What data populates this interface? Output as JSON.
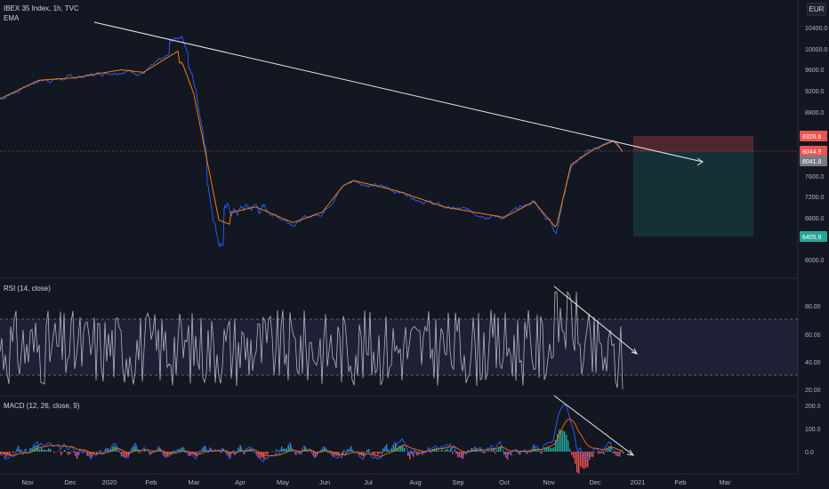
{
  "main": {
    "symbol_line": "IBEX 35 Index, 1h, TVC",
    "indicator": "EMA",
    "currency": "EUR",
    "y_ticks": [
      "10400.0",
      "10000.0",
      "9600.0",
      "9200.0",
      "8800.0",
      "8400.0",
      "8000.0",
      "7600.0",
      "7200.0",
      "6800.0",
      "6400.0",
      "6000.0"
    ],
    "price_badges": [
      {
        "text": "8326.6",
        "color": "#ef5350"
      },
      {
        "text": "8044.9",
        "color": "#ef5350"
      },
      {
        "text": "8041.8",
        "color": "#787b86"
      },
      {
        "text": "6405.9",
        "color": "#26a69a"
      }
    ]
  },
  "rsi": {
    "title": "RSI (14, close)",
    "y_ticks": [
      "80.00",
      "60.00",
      "40.00",
      "20.00"
    ]
  },
  "macd": {
    "title": "MACD (12, 26, close, 9)",
    "y_ticks": [
      "200.0",
      "100.0",
      "0.0"
    ]
  },
  "time_axis": [
    "Nov",
    "Dec",
    "2020",
    "Feb",
    "Mar",
    "Apr",
    "May",
    "Jun",
    "Jul",
    "Aug",
    "Sep",
    "Oct",
    "Nov",
    "Dec",
    "2021",
    "Feb",
    "Mar"
  ],
  "colors": {
    "background": "#131722",
    "price": "#2962ff",
    "ema": "#f57c00",
    "rsi": "#b2b5be",
    "rsi_band": "#7e57c2",
    "macd": "#2962ff",
    "signal": "#ff6d00",
    "hist_up": "#26a69a",
    "hist_down": "#ef5350",
    "trendline": "#ffffff"
  },
  "chart_data": [
    {
      "type": "line",
      "title": "IBEX 35 Index, 1h, TVC",
      "series": [
        {
          "name": "EMA",
          "x": [
            "2019-10-20",
            "2019-11-15",
            "2019-12-10",
            "2020-01-10",
            "2020-01-25",
            "2020-02-20",
            "2020-02-28",
            "2020-03-16",
            "2020-03-25",
            "2020-04-10",
            "2020-05-05",
            "2020-05-25",
            "2020-06-08",
            "2020-06-15",
            "2020-07-15",
            "2020-08-15",
            "2020-09-25",
            "2020-10-15",
            "2020-10-30",
            "2020-11-09",
            "2020-11-25",
            "2020-12-08",
            "2020-12-14"
          ],
          "y": [
            9050,
            9400,
            9450,
            9600,
            9550,
            10000,
            9400,
            7000,
            6900,
            7000,
            6700,
            6900,
            7400,
            7500,
            7300,
            7000,
            6800,
            7100,
            6600,
            7800,
            8100,
            8250,
            8050
          ]
        }
      ],
      "ylim": [
        5800,
        10700
      ],
      "annotations": {
        "trendline_from": [
          8200,
          10300
        ],
        "trendline_to": [
          7800,
          7850
        ],
        "position_entry": 8044.9,
        "stop": 8326.6,
        "target": 6405.9
      }
    },
    {
      "type": "line",
      "title": "RSI (14, close)",
      "ylim": [
        18,
        92
      ],
      "band": [
        30,
        70
      ]
    },
    {
      "type": "line",
      "title": "MACD (12, 26, close, 9)",
      "ylim": [
        -60,
        230
      ]
    }
  ]
}
